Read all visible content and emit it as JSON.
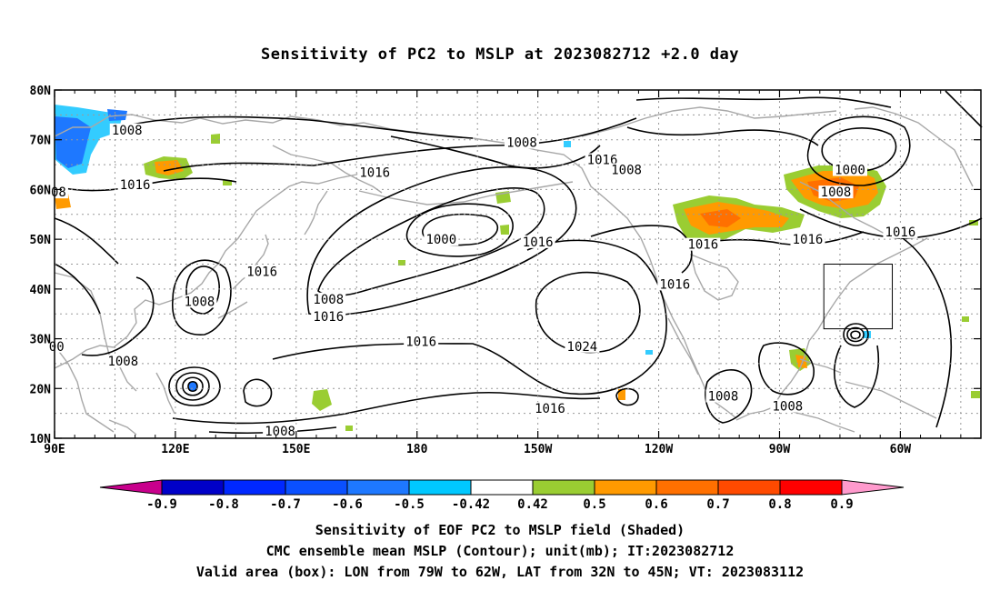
{
  "title": "Sensitivity of PC2 to MSLP at 2023082712 +2.0 day",
  "lat_labels": [
    "80N",
    "70N",
    "60N",
    "50N",
    "40N",
    "30N",
    "20N",
    "10N"
  ],
  "lon_labels": [
    "90E",
    "120E",
    "150E",
    "180",
    "150W",
    "120W",
    "90W",
    "60W"
  ],
  "contour_labels": [
    {
      "text": "1008",
      "lon": 108,
      "lat": 72
    },
    {
      "text": "1008",
      "lon": 206,
      "lat": 69.5
    },
    {
      "text": "1016",
      "lon": 226,
      "lat": 66
    },
    {
      "text": "1016",
      "lon": 169.5,
      "lat": 63.5
    },
    {
      "text": "1008",
      "lon": 232,
      "lat": 64
    },
    {
      "text": "1016",
      "lon": 110,
      "lat": 61
    },
    {
      "text": "1000",
      "lon": 287.5,
      "lat": 64
    },
    {
      "text": "1008",
      "lon": 284,
      "lat": 59.5
    },
    {
      "text": "1000",
      "lon": 186,
      "lat": 50
    },
    {
      "text": "1016",
      "lon": 210,
      "lat": 49.5
    },
    {
      "text": "1016",
      "lon": 251,
      "lat": 49
    },
    {
      "text": "1016",
      "lon": 277,
      "lat": 50
    },
    {
      "text": "1016",
      "lon": 300,
      "lat": 51.5
    },
    {
      "text": "1016",
      "lon": 141.5,
      "lat": 43.5
    },
    {
      "text": "1008",
      "lon": 126,
      "lat": 37.5
    },
    {
      "text": "1008",
      "lon": 158,
      "lat": 38
    },
    {
      "text": "1016",
      "lon": 158,
      "lat": 34.5
    },
    {
      "text": "1016",
      "lon": 244,
      "lat": 41
    },
    {
      "text": "1016",
      "lon": 181,
      "lat": 29.5
    },
    {
      "text": "1024",
      "lon": 221,
      "lat": 28.5
    },
    {
      "text": "1008",
      "lon": 107,
      "lat": 25.5
    },
    {
      "text": "1008",
      "lon": 256,
      "lat": 18.5
    },
    {
      "text": "1008",
      "lon": 272,
      "lat": 16.5
    },
    {
      "text": "1016",
      "lon": 213,
      "lat": 16
    },
    {
      "text": "1008",
      "lon": 146,
      "lat": 11.5
    },
    {
      "text": "00",
      "lon": 90.5,
      "lat": 28.5
    },
    {
      "text": "08",
      "lon": 91,
      "lat": 59.5
    }
  ],
  "colorbar": {
    "labels": [
      "-0.9",
      "-0.8",
      "-0.7",
      "-0.6",
      "-0.5",
      "-0.42",
      "0.42",
      "0.5",
      "0.6",
      "0.7",
      "0.8",
      "0.9"
    ],
    "colors": [
      "#0000c8",
      "#0028ff",
      "#0a50ff",
      "#1e78ff",
      "#00c8ff",
      "#ffffff",
      "#9acd32",
      "#ff9a00",
      "#ff7000",
      "#ff4a00",
      "#ff0000"
    ],
    "low_tri": "#c8008c",
    "high_tri": "#ff9acd"
  },
  "shading_colors": {
    "light_blue": "#33ccff",
    "mid_blue": "#1e78ff",
    "green": "#9acd32",
    "orange": "#ff9a00",
    "dark_orange": "#ff7000"
  },
  "valid_box": {
    "lon_min": 281,
    "lon_max": 298,
    "lat_min": 32,
    "lat_max": 45
  },
  "captions": [
    "Sensitivity of EOF PC2 to MSLP field (Shaded)",
    "CMC ensemble mean MSLP (Contour); unit(mb); IT:2023082712",
    "Valid area (box): LON from 79W to 62W, LAT from 32N to 45N; VT: 2023083112"
  ]
}
